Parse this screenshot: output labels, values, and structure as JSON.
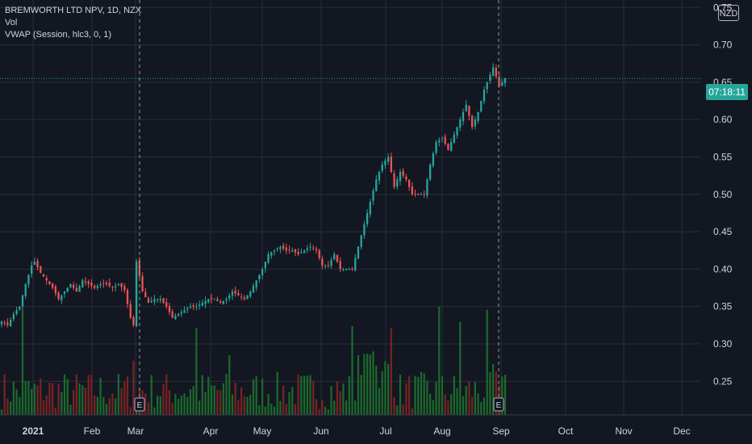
{
  "legend": {
    "symbol": "BREMWORTH LTD NPV, 1D, NZX",
    "vol": "Vol",
    "vwap": "VWAP (Session, hlc3, 0, 1)"
  },
  "currency": "NZD",
  "countdown": "07:18:11",
  "event_marker": "E",
  "colors": {
    "background": "#131722",
    "up": "#26a69a",
    "down": "#ef5350",
    "vol_up": "#1b6b2a",
    "vol_down": "#7a2323",
    "grid": "#2a2e39",
    "text": "#d1d4dc"
  },
  "chart_data": {
    "type": "line",
    "title": "",
    "xlabel": "",
    "ylabel": "",
    "x_ticks": [
      {
        "label": "2021",
        "bold": true
      },
      {
        "label": "Feb"
      },
      {
        "label": "Mar"
      },
      {
        "label": "Apr"
      },
      {
        "label": "May"
      },
      {
        "label": "Jun"
      },
      {
        "label": "Jul"
      },
      {
        "label": "Aug"
      },
      {
        "label": "Sep"
      },
      {
        "label": "Oct"
      },
      {
        "label": "Nov"
      },
      {
        "label": "Dec"
      }
    ],
    "y_ticks": [
      0.25,
      0.3,
      0.35,
      0.4,
      0.45,
      0.5,
      0.55,
      0.6,
      0.65,
      0.7,
      0.75
    ],
    "ylim": [
      0.205,
      0.76
    ],
    "last_price": 0.655,
    "grid": true,
    "price_keypoints": [
      [
        0,
        0.33
      ],
      [
        2,
        0.325
      ],
      [
        4,
        0.34
      ],
      [
        6,
        0.35
      ],
      [
        8,
        0.38
      ],
      [
        10,
        0.405
      ],
      [
        11,
        0.41
      ],
      [
        13,
        0.395
      ],
      [
        15,
        0.385
      ],
      [
        17,
        0.375
      ],
      [
        19,
        0.36
      ],
      [
        21,
        0.37
      ],
      [
        23,
        0.38
      ],
      [
        25,
        0.37
      ],
      [
        27,
        0.385
      ],
      [
        29,
        0.38
      ],
      [
        31,
        0.375
      ],
      [
        33,
        0.38
      ],
      [
        35,
        0.38
      ],
      [
        37,
        0.375
      ],
      [
        39,
        0.38
      ],
      [
        41,
        0.372
      ],
      [
        43,
        0.335
      ],
      [
        44,
        0.325
      ],
      [
        45,
        0.41
      ],
      [
        47,
        0.37
      ],
      [
        49,
        0.355
      ],
      [
        51,
        0.36
      ],
      [
        53,
        0.36
      ],
      [
        55,
        0.35
      ],
      [
        57,
        0.335
      ],
      [
        59,
        0.34
      ],
      [
        61,
        0.345
      ],
      [
        63,
        0.35
      ],
      [
        65,
        0.35
      ],
      [
        67,
        0.355
      ],
      [
        69,
        0.36
      ],
      [
        71,
        0.36
      ],
      [
        73,
        0.355
      ],
      [
        75,
        0.36
      ],
      [
        77,
        0.37
      ],
      [
        79,
        0.365
      ],
      [
        81,
        0.36
      ],
      [
        83,
        0.37
      ],
      [
        85,
        0.385
      ],
      [
        87,
        0.4
      ],
      [
        89,
        0.42
      ],
      [
        91,
        0.425
      ],
      [
        93,
        0.43
      ],
      [
        95,
        0.425
      ],
      [
        97,
        0.425
      ],
      [
        99,
        0.42
      ],
      [
        101,
        0.425
      ],
      [
        103,
        0.43
      ],
      [
        105,
        0.425
      ],
      [
        107,
        0.405
      ],
      [
        109,
        0.405
      ],
      [
        111,
        0.42
      ],
      [
        113,
        0.4
      ],
      [
        115,
        0.4
      ],
      [
        117,
        0.4
      ],
      [
        119,
        0.43
      ],
      [
        121,
        0.46
      ],
      [
        123,
        0.49
      ],
      [
        125,
        0.52
      ],
      [
        127,
        0.54
      ],
      [
        129,
        0.55
      ],
      [
        131,
        0.51
      ],
      [
        133,
        0.53
      ],
      [
        135,
        0.52
      ],
      [
        137,
        0.5
      ],
      [
        139,
        0.5
      ],
      [
        141,
        0.5
      ],
      [
        143,
        0.54
      ],
      [
        145,
        0.57
      ],
      [
        147,
        0.575
      ],
      [
        149,
        0.56
      ],
      [
        151,
        0.58
      ],
      [
        153,
        0.6
      ],
      [
        155,
        0.62
      ],
      [
        157,
        0.59
      ],
      [
        159,
        0.61
      ],
      [
        161,
        0.64
      ],
      [
        163,
        0.66
      ],
      [
        164,
        0.67
      ],
      [
        166,
        0.645
      ],
      [
        168,
        0.655
      ]
    ],
    "volume_max": 0.35,
    "volume_spikes": [
      [
        7,
        0.97
      ],
      [
        44,
        0.5
      ],
      [
        65,
        0.8
      ],
      [
        76,
        0.55
      ],
      [
        117,
        0.82
      ],
      [
        130,
        0.8
      ],
      [
        146,
        1.0
      ],
      [
        153,
        0.86
      ],
      [
        162,
        0.97
      ],
      [
        164,
        0.47
      ]
    ]
  }
}
